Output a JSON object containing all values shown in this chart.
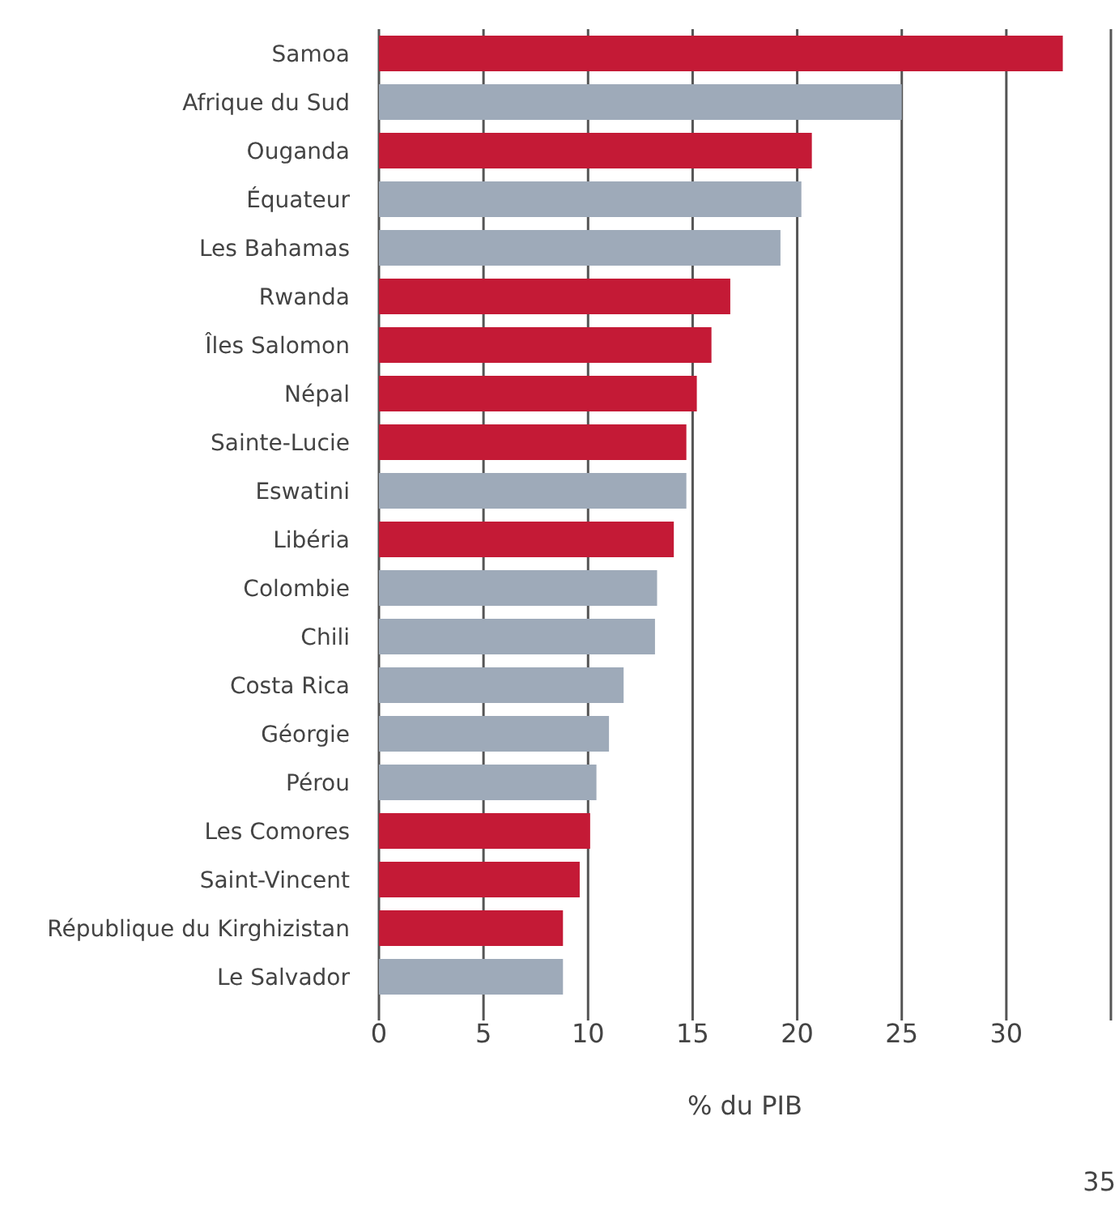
{
  "chart_data": {
    "type": "bar",
    "orientation": "horizontal",
    "xlabel": "% du PIB",
    "categories": [
      "Samoa",
      "Afrique du Sud",
      "Ouganda",
      "Équateur",
      "Les Bahamas",
      "Rwanda",
      "Îles Salomon",
      "Népal",
      "Sainte-Lucie",
      "Eswatini",
      "Libéria",
      "Colombie",
      "Chili",
      "Costa Rica",
      "Géorgie",
      "Pérou",
      "Les Comores",
      "Saint-Vincent",
      "République du Kirghizistan",
      "Le Salvador"
    ],
    "values": [
      32.7,
      25.0,
      20.7,
      20.2,
      19.2,
      16.8,
      15.9,
      15.2,
      14.7,
      14.7,
      14.1,
      13.3,
      13.2,
      11.7,
      11.0,
      10.4,
      10.1,
      9.6,
      8.8,
      8.8
    ],
    "colors": [
      "#c41a36",
      "#9eaab9",
      "#c41a36",
      "#9eaab9",
      "#9eaab9",
      "#c41a36",
      "#c41a36",
      "#c41a36",
      "#c41a36",
      "#9eaab9",
      "#c41a36",
      "#9eaab9",
      "#9eaab9",
      "#9eaab9",
      "#9eaab9",
      "#9eaab9",
      "#c41a36",
      "#c41a36",
      "#c41a36",
      "#9eaab9"
    ],
    "xlim": [
      0,
      35
    ],
    "xticks": [
      0,
      5,
      10,
      15,
      20,
      25,
      30,
      {
        "value": 35,
        "label": null
      }
    ],
    "grid": "x",
    "annotations": [
      "35"
    ]
  }
}
